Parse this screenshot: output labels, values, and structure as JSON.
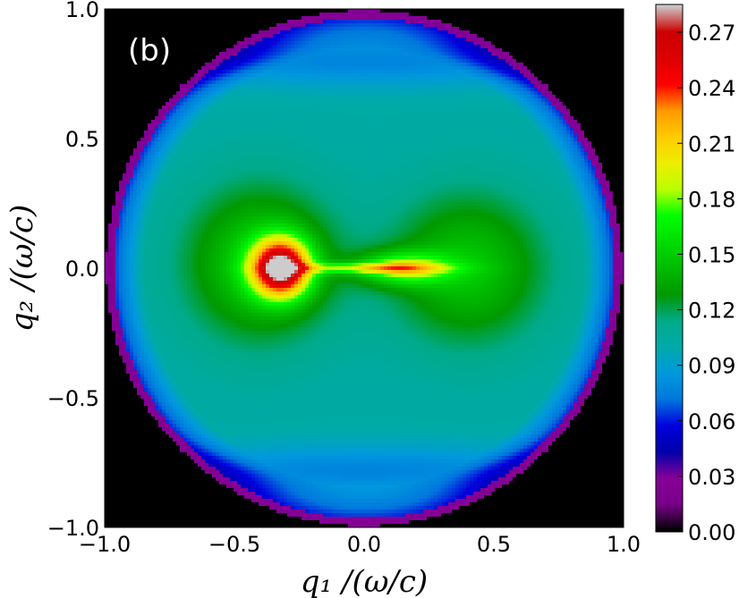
{
  "chart_data": {
    "type": "heatmap",
    "panel_label": "(b)",
    "xlabel": "q₁ /(ω/c)",
    "ylabel": "q₂ /(ω/c)",
    "xlim": [
      -1.0,
      1.0
    ],
    "ylim": [
      -1.0,
      1.0
    ],
    "x_ticks": [
      "−1.0",
      "−0.5",
      "0.0",
      "0.5",
      "1.0"
    ],
    "x_tick_values": [
      -1.0,
      -0.5,
      0.0,
      0.5,
      1.0
    ],
    "y_ticks": [
      "−1.0",
      "−0.5",
      "0.0",
      "0.5",
      "1.0"
    ],
    "y_tick_values": [
      -1.0,
      -0.5,
      0.0,
      0.5,
      1.0
    ],
    "colorbar": {
      "range": [
        0.0,
        0.285
      ],
      "ticks": [
        "0.00",
        "0.03",
        "0.06",
        "0.09",
        "0.12",
        "0.15",
        "0.18",
        "0.21",
        "0.24",
        "0.27"
      ],
      "tick_values": [
        0.0,
        0.03,
        0.06,
        0.09,
        0.12,
        0.15,
        0.18,
        0.21,
        0.24,
        0.27
      ],
      "colormap": "nipy_spectral"
    },
    "features": {
      "domain": "unit disk q1^2 + q2^2 <= 1 (outside = 0)",
      "peak": {
        "q1": -0.32,
        "q2": 0.0,
        "value": 0.28
      },
      "secondary_lobe": {
        "q1": 0.35,
        "q2": 0.0,
        "value": 0.19
      },
      "boundary_ring_value": 0.03
    },
    "grid": false,
    "legend": "colorbar-right"
  }
}
